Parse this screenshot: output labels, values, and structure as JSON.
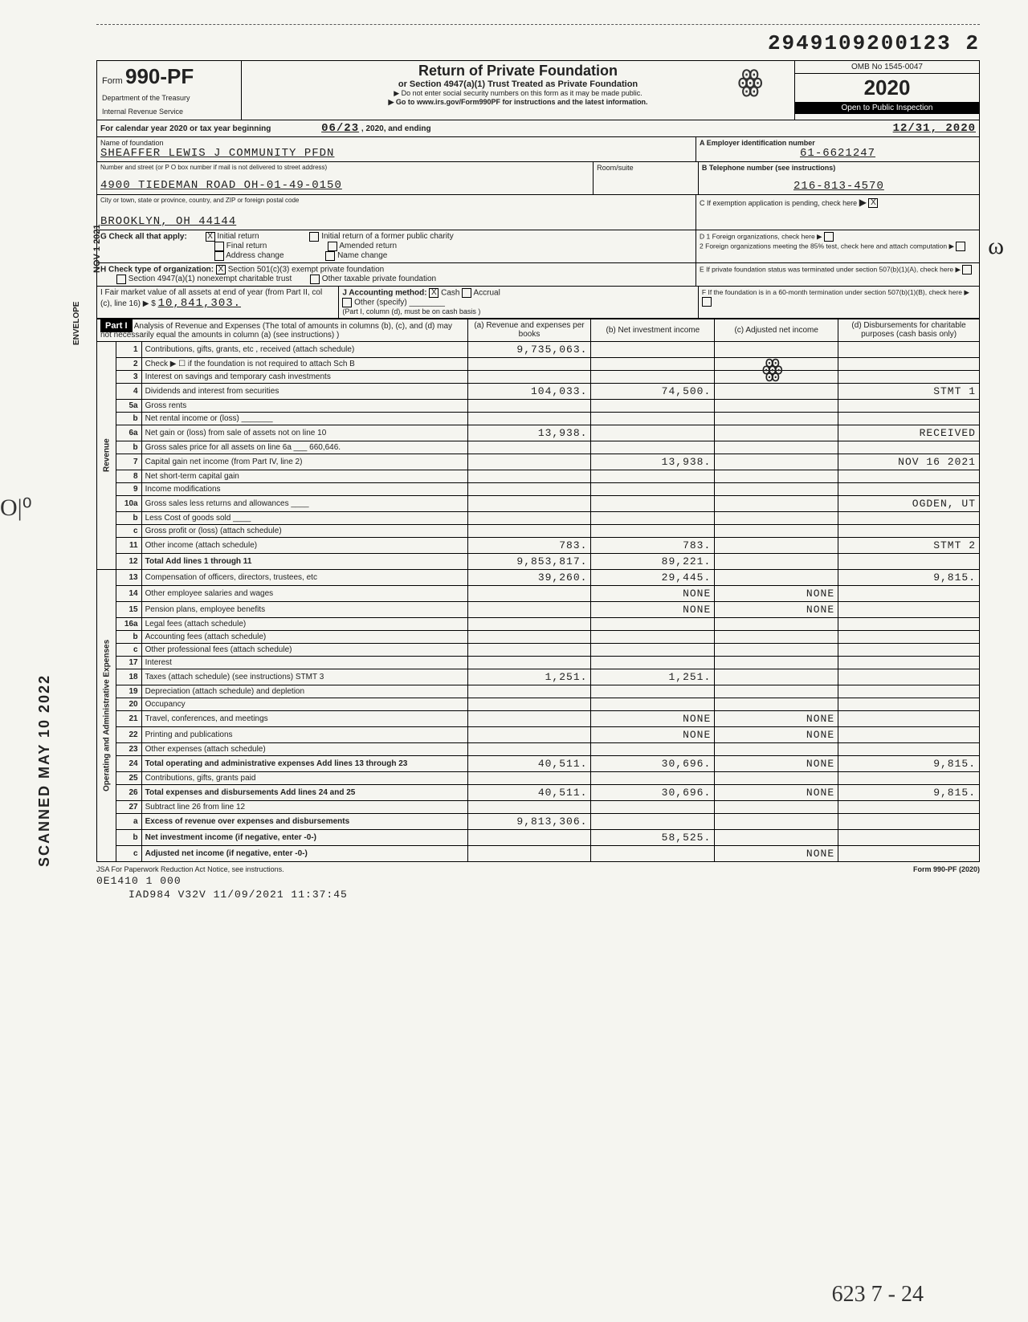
{
  "doc_number": "2949109200123 2",
  "vertical_labels": {
    "scanned": "SCANNED MAY 10 2022",
    "envelope": "ENVELOPE",
    "nov": "NOV 1 2021"
  },
  "header": {
    "form_prefix": "Form",
    "form_number": "990-PF",
    "dept1": "Department of the Treasury",
    "dept2": "Internal Revenue Service",
    "title": "Return of Private Foundation",
    "subtitle": "or Section 4947(a)(1) Trust Treated as Private Foundation",
    "warn": "▶ Do not enter social security numbers on this form as it may be made public.",
    "goto": "▶ Go to www.irs.gov/Form990PF for instructions and the latest information.",
    "omb": "OMB No 1545-0047",
    "year": "2020",
    "inspection": "Open to Public Inspection"
  },
  "calendar_line": {
    "prefix": "For calendar year 2020 or tax year beginning",
    "begin": "06/23",
    "mid": ", 2020, and ending",
    "end": "12/31, 2020"
  },
  "name_block": {
    "name_label": "Name of foundation",
    "name": "SHEAFFER LEWIS J COMMUNITY PFDN",
    "addr_label": "Number and street (or P O box number if mail is not delivered to street address)",
    "addr": "4900 TIEDEMAN ROAD OH-01-49-0150",
    "city_label": "City or town, state or province, country, and ZIP or foreign postal code",
    "city": "BROOKLYN, OH 44144",
    "room_label": "Room/suite",
    "ein_label": "A  Employer identification number",
    "ein": "61-6621247",
    "phone_label": "B  Telephone number (see instructions)",
    "phone": "216-813-4570",
    "c_label": "C  If exemption application is pending, check here",
    "d1": "D 1 Foreign organizations, check here",
    "d2": "2 Foreign organizations meeting the 85% test, check here and attach computation",
    "e": "E  If private foundation status was terminated under section 507(b)(1)(A), check here",
    "f": "F  If the foundation is in a 60-month termination under section 507(b)(1)(B), check here"
  },
  "g_block": {
    "label": "G  Check all that apply:",
    "opts": [
      "Initial return",
      "Final return",
      "Address change",
      "Initial return of a former public charity",
      "Amended return",
      "Name change"
    ],
    "checked_x": "X"
  },
  "h_block": {
    "label": "H  Check type of organization:",
    "opt1": "Section 501(c)(3) exempt private foundation",
    "opt2": "Section 4947(a)(1) nonexempt charitable trust",
    "opt3": "Other taxable private foundation"
  },
  "i_block": {
    "label": "I   Fair market value of all assets at end of year (from Part II, col (c), line 16) ▶ $",
    "value": "10,841,303.",
    "j_label": "J Accounting method:",
    "cash": "Cash",
    "accrual": "Accrual",
    "other": "Other (specify)",
    "note": "(Part I, column (d), must be on cash basis )"
  },
  "part1": {
    "header": "Part I",
    "title": "Analysis of Revenue and Expenses (The total of amounts in columns (b), (c), and (d) may not necessarily equal the amounts in column (a) (see instructions) )",
    "col_a": "(a) Revenue and expenses per books",
    "col_b": "(b) Net investment income",
    "col_c": "(c) Adjusted net income",
    "col_d": "(d) Disbursements for charitable purposes (cash basis only)"
  },
  "side_labels": {
    "revenue": "Revenue",
    "expenses": "Operating and Administrative Expenses"
  },
  "lines": [
    {
      "n": "1",
      "desc": "Contributions, gifts, grants, etc , received (attach schedule)",
      "a": "9,735,063.",
      "b": "",
      "c": "",
      "d": ""
    },
    {
      "n": "2",
      "desc": "Check ▶ ☐ if the foundation is not required to attach Sch B",
      "a": "",
      "b": "",
      "c": "",
      "d": ""
    },
    {
      "n": "3",
      "desc": "Interest on savings and temporary cash investments",
      "a": "",
      "b": "",
      "c": "",
      "d": ""
    },
    {
      "n": "4",
      "desc": "Dividends and interest from securities",
      "a": "104,033.",
      "b": "74,500.",
      "c": "",
      "d": "STMT 1"
    },
    {
      "n": "5a",
      "desc": "Gross rents",
      "a": "",
      "b": "",
      "c": "",
      "d": ""
    },
    {
      "n": "b",
      "desc": "Net rental income or (loss) _______",
      "a": "",
      "b": "",
      "c": "",
      "d": ""
    },
    {
      "n": "6a",
      "desc": "Net gain or (loss) from sale of assets not on line 10",
      "a": "13,938.",
      "b": "",
      "c": "",
      "d": "RECEIVED"
    },
    {
      "n": "b",
      "desc": "Gross sales price for all assets on line 6a ___ 660,646.",
      "a": "",
      "b": "",
      "c": "",
      "d": ""
    },
    {
      "n": "7",
      "desc": "Capital gain net income (from Part IV, line 2)",
      "a": "",
      "b": "13,938.",
      "c": "",
      "d": "NOV 16 2021"
    },
    {
      "n": "8",
      "desc": "Net short-term capital gain",
      "a": "",
      "b": "",
      "c": "",
      "d": ""
    },
    {
      "n": "9",
      "desc": "Income modifications",
      "a": "",
      "b": "",
      "c": "",
      "d": ""
    },
    {
      "n": "10a",
      "desc": "Gross sales less returns and allowances ____",
      "a": "",
      "b": "",
      "c": "",
      "d": "OGDEN, UT"
    },
    {
      "n": "b",
      "desc": "Less Cost of goods sold ____",
      "a": "",
      "b": "",
      "c": "",
      "d": ""
    },
    {
      "n": "c",
      "desc": "Gross profit or (loss) (attach schedule)",
      "a": "",
      "b": "",
      "c": "",
      "d": ""
    },
    {
      "n": "11",
      "desc": "Other income (attach schedule)",
      "a": "783.",
      "b": "783.",
      "c": "",
      "d": "STMT 2"
    },
    {
      "n": "12",
      "desc": "Total  Add lines 1 through 11",
      "a": "9,853,817.",
      "b": "89,221.",
      "c": "",
      "d": "",
      "bold": true
    },
    {
      "n": "13",
      "desc": "Compensation of officers, directors, trustees, etc",
      "a": "39,260.",
      "b": "29,445.",
      "c": "",
      "d": "9,815."
    },
    {
      "n": "14",
      "desc": "Other employee salaries and wages",
      "a": "",
      "b": "NONE",
      "c": "NONE",
      "d": ""
    },
    {
      "n": "15",
      "desc": "Pension plans, employee benefits",
      "a": "",
      "b": "NONE",
      "c": "NONE",
      "d": ""
    },
    {
      "n": "16a",
      "desc": "Legal fees (attach schedule)",
      "a": "",
      "b": "",
      "c": "",
      "d": ""
    },
    {
      "n": "b",
      "desc": "Accounting fees (attach schedule)",
      "a": "",
      "b": "",
      "c": "",
      "d": ""
    },
    {
      "n": "c",
      "desc": "Other professional fees (attach schedule)",
      "a": "",
      "b": "",
      "c": "",
      "d": ""
    },
    {
      "n": "17",
      "desc": "Interest",
      "a": "",
      "b": "",
      "c": "",
      "d": ""
    },
    {
      "n": "18",
      "desc": "Taxes (attach schedule) (see instructions) STMT 3",
      "a": "1,251.",
      "b": "1,251.",
      "c": "",
      "d": ""
    },
    {
      "n": "19",
      "desc": "Depreciation (attach schedule) and depletion",
      "a": "",
      "b": "",
      "c": "",
      "d": ""
    },
    {
      "n": "20",
      "desc": "Occupancy",
      "a": "",
      "b": "",
      "c": "",
      "d": ""
    },
    {
      "n": "21",
      "desc": "Travel, conferences, and meetings",
      "a": "",
      "b": "NONE",
      "c": "NONE",
      "d": ""
    },
    {
      "n": "22",
      "desc": "Printing and publications",
      "a": "",
      "b": "NONE",
      "c": "NONE",
      "d": ""
    },
    {
      "n": "23",
      "desc": "Other expenses (attach schedule)",
      "a": "",
      "b": "",
      "c": "",
      "d": ""
    },
    {
      "n": "24",
      "desc": "Total operating and administrative expenses  Add lines 13 through 23",
      "a": "40,511.",
      "b": "30,696.",
      "c": "NONE",
      "d": "9,815.",
      "bold": true
    },
    {
      "n": "25",
      "desc": "Contributions, gifts, grants paid",
      "a": "",
      "b": "",
      "c": "",
      "d": ""
    },
    {
      "n": "26",
      "desc": "Total expenses and disbursements  Add lines 24 and 25",
      "a": "40,511.",
      "b": "30,696.",
      "c": "NONE",
      "d": "9,815.",
      "bold": true
    },
    {
      "n": "27",
      "desc": "Subtract line 26 from line 12",
      "a": "",
      "b": "",
      "c": "",
      "d": ""
    },
    {
      "n": "a",
      "desc": "Excess of revenue over expenses and disbursements",
      "a": "9,813,306.",
      "b": "",
      "c": "",
      "d": "",
      "bold": true
    },
    {
      "n": "b",
      "desc": "Net investment income (if negative, enter -0-)",
      "a": "",
      "b": "58,525.",
      "c": "",
      "d": "",
      "bold": true
    },
    {
      "n": "c",
      "desc": "Adjusted net income (if negative, enter -0-)",
      "a": "",
      "b": "",
      "c": "NONE",
      "d": "",
      "bold": true
    }
  ],
  "footer": {
    "left": "JSA  For Paperwork Reduction Act Notice, see instructions.",
    "right": "Form 990-PF (2020)",
    "code1": "0E1410 1 000",
    "code2": "IAD984  V32V  11/09/2021  11:37:45"
  },
  "handwritten": {
    "margin": "O|⁰",
    "signature": "ꙮ",
    "initials": "ꙮ",
    "side": "ω",
    "bottom": "623   7   -   24"
  },
  "stamp": {
    "line1": "RECEIVED",
    "line2": "NOV 16 2021",
    "line3": "OGDEN, UT"
  },
  "colors": {
    "bg": "#f5f5f0",
    "text": "#222222",
    "border": "#000000",
    "stamp": "#600000"
  }
}
